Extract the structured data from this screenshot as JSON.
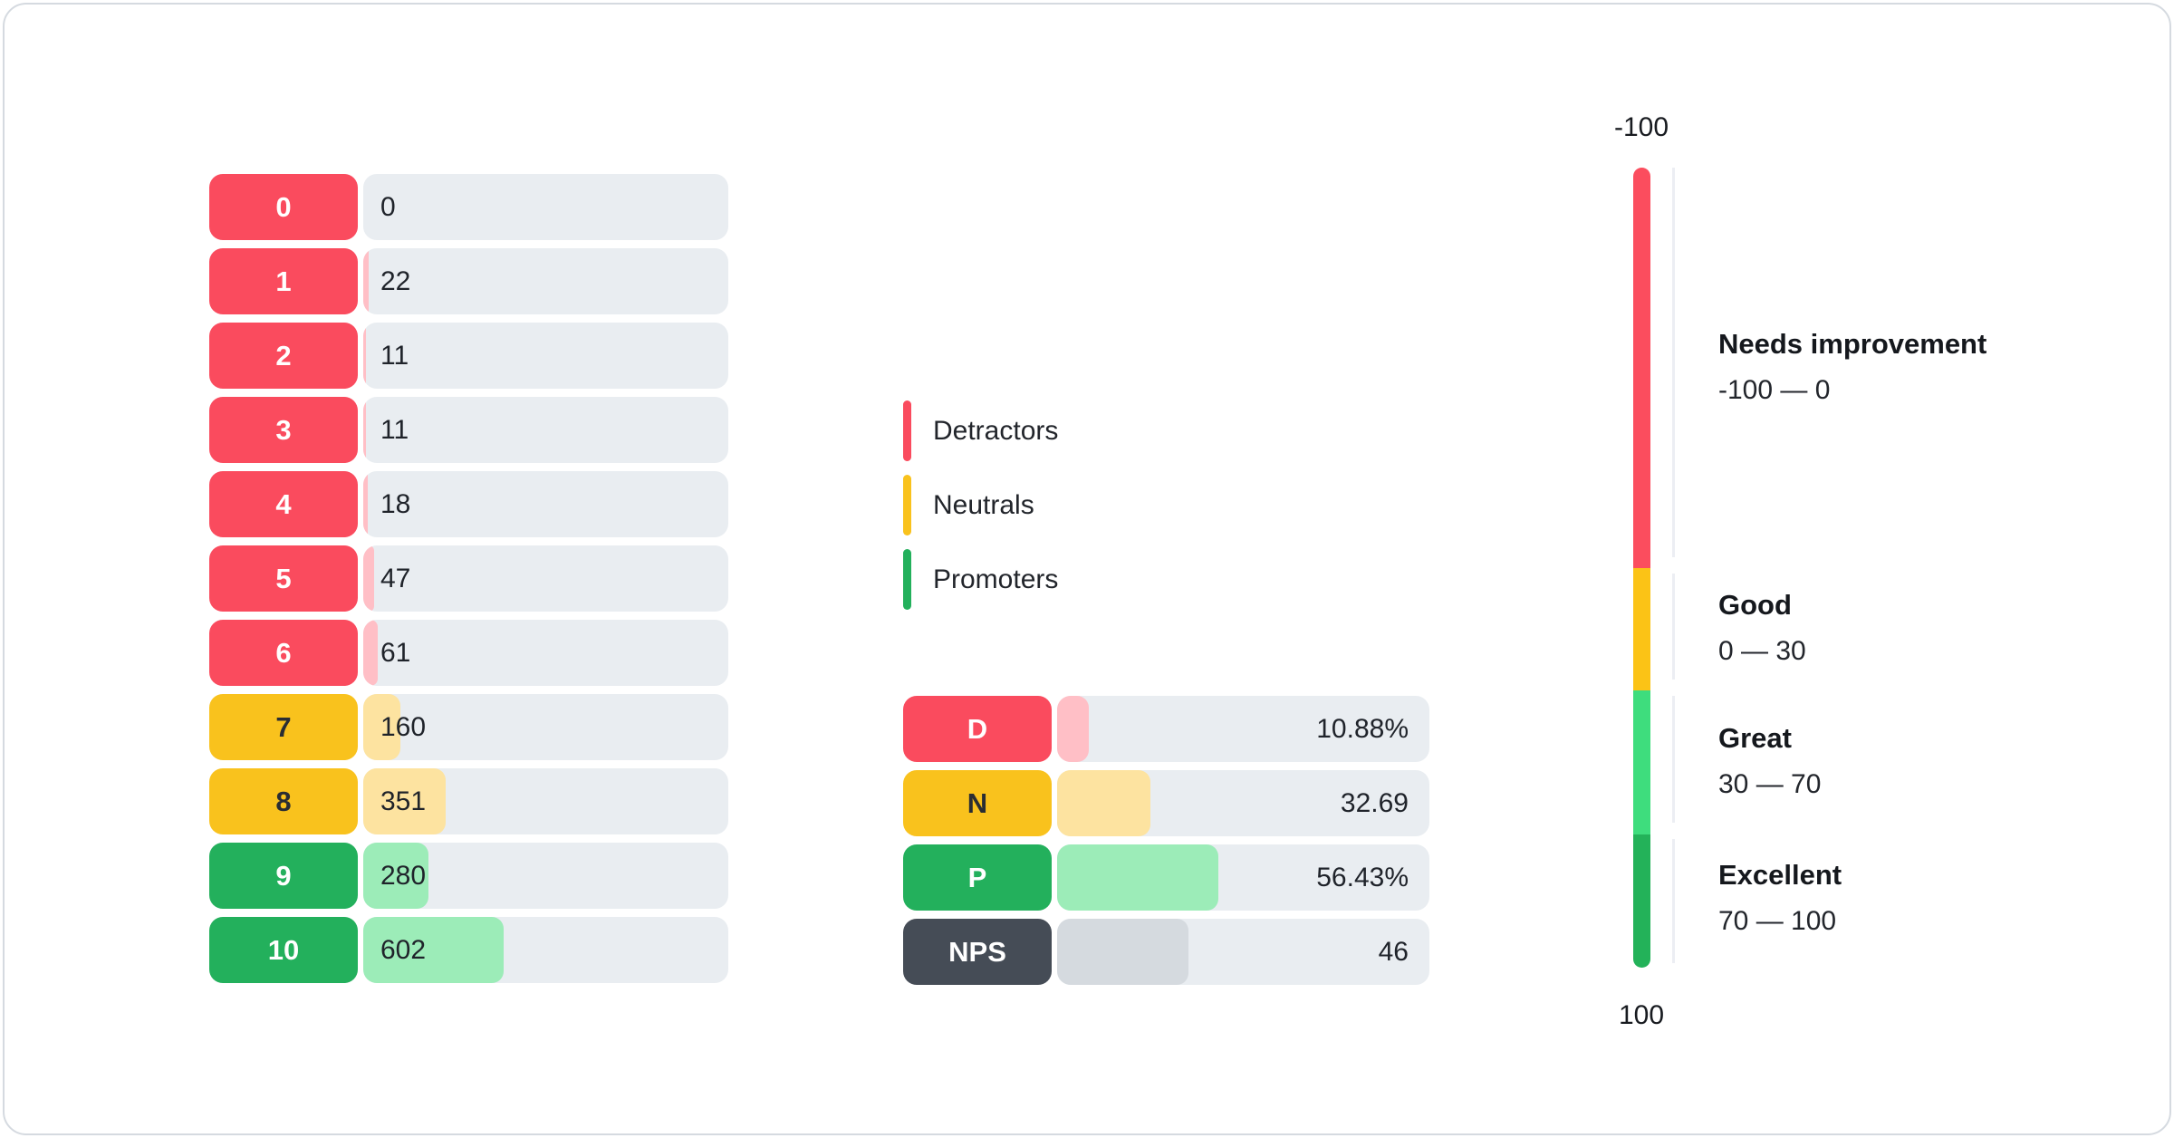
{
  "colors": {
    "detractor": "#FA4B5E",
    "detractor_fill": "#FFBFC6",
    "neutral": "#F9C21D",
    "neutral_fill": "#FDE3A0",
    "promoter": "#23B05C",
    "promoter_fill": "#9CECB8",
    "nps": "#454C56",
    "nps_fill": "#D5DADF",
    "track": "#E9EDF1",
    "badge_text_light": "#FFFFFF",
    "badge_text_dark": "#2A2D33",
    "gauge_red": "#FB4D5E",
    "gauge_yellow": "#FBC316",
    "gauge_light_green": "#3EDD7D",
    "gauge_dark_green": "#23B259",
    "tick_line": "#ECEEF3"
  },
  "legend": {
    "items": [
      {
        "label": "Detractors",
        "group": "detractor"
      },
      {
        "label": "Neutrals",
        "group": "neutral"
      },
      {
        "label": "Promoters",
        "group": "promoter"
      }
    ]
  },
  "chart_data": [
    {
      "name": "score-distribution",
      "type": "bar",
      "orientation": "horizontal",
      "categories": [
        "0",
        "1",
        "2",
        "3",
        "4",
        "5",
        "6",
        "7",
        "8",
        "9",
        "10"
      ],
      "values": [
        0,
        22,
        11,
        11,
        18,
        47,
        61,
        160,
        351,
        280,
        602
      ],
      "rows": [
        {
          "score": "0",
          "count": "0",
          "pct": 0,
          "group": "detractor"
        },
        {
          "score": "1",
          "count": "22",
          "pct": 1.4,
          "group": "detractor"
        },
        {
          "score": "2",
          "count": "11",
          "pct": 0.7,
          "group": "detractor"
        },
        {
          "score": "3",
          "count": "11",
          "pct": 0.7,
          "group": "detractor"
        },
        {
          "score": "4",
          "count": "18",
          "pct": 1.2,
          "group": "detractor"
        },
        {
          "score": "5",
          "count": "47",
          "pct": 3.0,
          "group": "detractor"
        },
        {
          "score": "6",
          "count": "61",
          "pct": 3.9,
          "group": "detractor"
        },
        {
          "score": "7",
          "count": "160",
          "pct": 10.2,
          "group": "neutral"
        },
        {
          "score": "8",
          "count": "351",
          "pct": 22.5,
          "group": "neutral"
        },
        {
          "score": "9",
          "count": "280",
          "pct": 17.9,
          "group": "promoter"
        },
        {
          "score": "10",
          "count": "602",
          "pct": 38.5,
          "group": "promoter"
        }
      ]
    },
    {
      "name": "nps-summary",
      "type": "bar",
      "orientation": "horizontal",
      "rows": [
        {
          "label": "D",
          "value": "10.88%",
          "fill_pct": 8.4,
          "group": "detractor"
        },
        {
          "label": "N",
          "value": "32.69",
          "fill_pct": 25.1,
          "group": "neutral"
        },
        {
          "label": "P",
          "value": "56.43%",
          "fill_pct": 43.4,
          "group": "promoter"
        },
        {
          "label": "NPS",
          "value": "46",
          "fill_pct": 35.4,
          "group": "nps"
        }
      ]
    },
    {
      "name": "nps-gauge",
      "type": "gauge",
      "axis": {
        "top": "-100",
        "bottom": "100"
      },
      "segments": [
        {
          "zone": "Needs improvement",
          "range": "-100 — 0",
          "height_pct": 50
        },
        {
          "zone": "Good",
          "range": "0 — 30",
          "height_pct": 15.4
        },
        {
          "zone": "Great",
          "range": "30 — 70",
          "height_pct": 18
        },
        {
          "zone": "Excellent",
          "range": "70 — 100",
          "height_pct": 16.6
        }
      ]
    }
  ]
}
